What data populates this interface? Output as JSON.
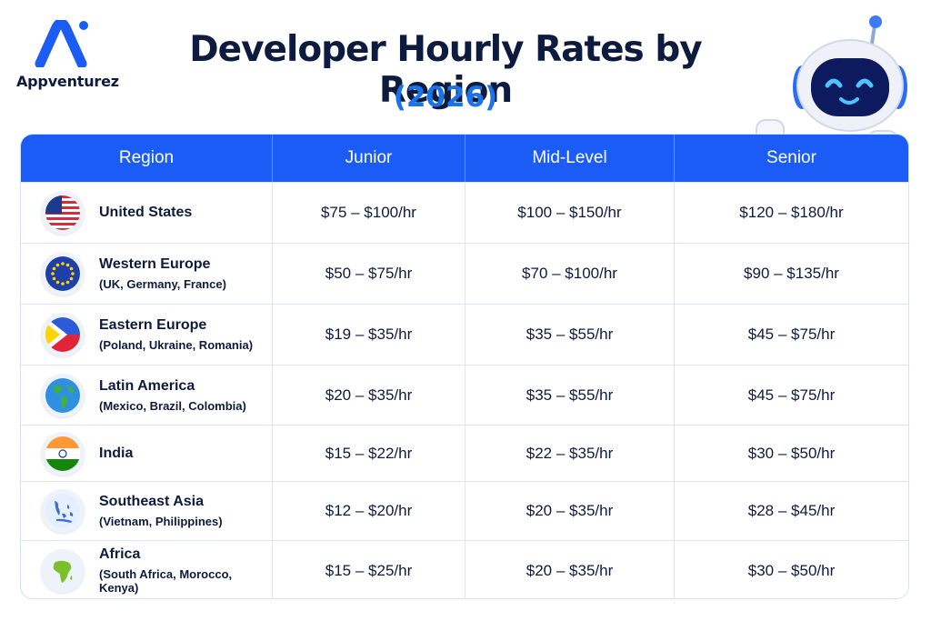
{
  "brand": {
    "name": "Appventurez"
  },
  "header": {
    "title": "Developer Hourly Rates by Region",
    "subtitle": "(2026)"
  },
  "colors": {
    "accent": "#1a5cf5",
    "subtitle": "#1a73e8",
    "text": "#0d1b3e"
  },
  "table": {
    "columns": [
      "Region",
      "Junior",
      "Mid-Level",
      "Senior"
    ],
    "rows": [
      {
        "icon": "us-flag-icon",
        "region": "United States",
        "sub": "",
        "junior": "$75 – $100/hr",
        "mid": "$100 – $150/hr",
        "senior": "$120 – $180/hr"
      },
      {
        "icon": "eu-flag-icon",
        "region": "Western Europe",
        "sub": "(UK, Germany, France)",
        "junior": "$50 – $75/hr",
        "mid": "$70 – $100/hr",
        "senior": "$90 – $135/hr"
      },
      {
        "icon": "eastern-europe-flag-icon",
        "region": "Eastern Europe",
        "sub": "(Poland, Ukraine, Romania)",
        "junior": "$19 – $35/hr",
        "mid": "$35 – $55/hr",
        "senior": "$45 – $75/hr"
      },
      {
        "icon": "globe-icon",
        "region": "Latin America",
        "sub": "(Mexico, Brazil, Colombia)",
        "junior": "$20 – $35/hr",
        "mid": "$35 – $55/hr",
        "senior": "$45 – $75/hr"
      },
      {
        "icon": "india-flag-icon",
        "region": "India",
        "sub": "",
        "junior": "$15 – $22/hr",
        "mid": "$22 – $35/hr",
        "senior": "$30 – $50/hr"
      },
      {
        "icon": "southeast-asia-map-icon",
        "region": "Southeast Asia",
        "sub": "(Vietnam, Philippines)",
        "junior": "$12 – $20/hr",
        "mid": "$20 – $35/hr",
        "senior": "$28 – $45/hr"
      },
      {
        "icon": "africa-map-icon",
        "region": "Africa",
        "sub": "(South Africa, Morocco, Kenya)",
        "junior": "$15 – $25/hr",
        "mid": "$20 – $35/hr",
        "senior": "$30 – $50/hr"
      }
    ]
  }
}
